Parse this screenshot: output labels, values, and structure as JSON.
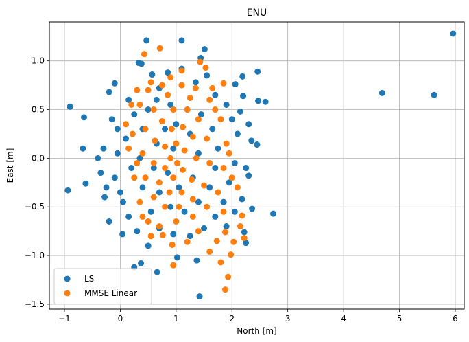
{
  "chart_data": {
    "type": "scatter",
    "title": "ENU",
    "xlabel": "North [m]",
    "ylabel": "East [m]",
    "xlim": [
      -1.27,
      6.16
    ],
    "ylim": [
      -1.55,
      1.4
    ],
    "xticks": [
      -1,
      0,
      1,
      2,
      3,
      4,
      5,
      6
    ],
    "xtick_labels": [
      "−1",
      "0",
      "1",
      "2",
      "3",
      "4",
      "5",
      "6"
    ],
    "yticks": [
      -1.5,
      -1.0,
      -0.5,
      0.0,
      0.5,
      1.0
    ],
    "ytick_labels": [
      "−1.5",
      "−1.0",
      "−0.5",
      "0.0",
      "0.5",
      "1.0"
    ],
    "grid": true,
    "legend_position": "bottom-left",
    "series": [
      {
        "name": "LS",
        "color": "#1f77b4",
        "points": [
          [
            5.96,
            1.28
          ],
          [
            4.69,
            0.67
          ],
          [
            5.62,
            0.65
          ],
          [
            1.1,
            1.21
          ],
          [
            0.47,
            1.21
          ],
          [
            1.51,
            1.12
          ],
          [
            0.33,
            0.98
          ],
          [
            0.38,
            0.97
          ],
          [
            0.57,
            0.86
          ],
          [
            1.44,
            1.03
          ],
          [
            2.46,
            0.89
          ],
          [
            2.19,
            0.84
          ],
          [
            2.06,
            0.76
          ],
          [
            -0.1,
            0.77
          ],
          [
            -0.2,
            0.68
          ],
          [
            -0.9,
            0.53
          ],
          [
            -0.65,
            0.42
          ],
          [
            2.6,
            0.58
          ],
          [
            2.47,
            0.59
          ],
          [
            2.2,
            0.64
          ],
          [
            -0.67,
            0.1
          ],
          [
            -0.94,
            -0.33
          ],
          [
            -0.62,
            -0.26
          ],
          [
            -0.4,
            0.0
          ],
          [
            -0.28,
            -0.4
          ],
          [
            -0.2,
            -0.65
          ],
          [
            0.04,
            -0.78
          ],
          [
            2.74,
            -0.57
          ],
          [
            2.36,
            -0.52
          ],
          [
            2.18,
            -0.42
          ],
          [
            2.22,
            -0.76
          ],
          [
            2.25,
            -0.87
          ],
          [
            1.42,
            -1.42
          ],
          [
            1.02,
            -1.02
          ],
          [
            0.66,
            -1.17
          ],
          [
            0.37,
            -1.08
          ],
          [
            0.25,
            -1.12
          ],
          [
            0.5,
            -0.9
          ],
          [
            1.37,
            -1.05
          ],
          [
            2.35,
            0.18
          ],
          [
            2.3,
            0.35
          ],
          [
            2.45,
            0.14
          ],
          [
            2.25,
            -0.1
          ],
          [
            2.3,
            -0.18
          ],
          [
            -0.15,
            0.4
          ],
          [
            -0.05,
            0.3
          ],
          [
            -0.3,
            0.1
          ],
          [
            -0.35,
            -0.15
          ],
          [
            -0.25,
            -0.3
          ],
          [
            -0.1,
            -0.2
          ],
          [
            0.05,
            -0.45
          ],
          [
            0.15,
            -0.6
          ],
          [
            0.3,
            -0.75
          ],
          [
            1.1,
            0.92
          ],
          [
            0.85,
            0.88
          ],
          [
            0.7,
            0.72
          ],
          [
            1.35,
            0.78
          ],
          [
            1.7,
            0.65
          ],
          [
            1.9,
            0.55
          ],
          [
            2.0,
            0.4
          ],
          [
            2.1,
            0.25
          ],
          [
            2.05,
            -0.05
          ],
          [
            1.95,
            -0.25
          ],
          [
            1.85,
            -0.45
          ],
          [
            1.7,
            -0.6
          ],
          [
            1.5,
            -0.72
          ],
          [
            1.25,
            -0.8
          ],
          [
            0.95,
            -0.78
          ],
          [
            0.7,
            -0.72
          ],
          [
            0.55,
            -0.55
          ],
          [
            0.4,
            -0.3
          ],
          [
            0.35,
            0.0
          ],
          [
            0.4,
            0.3
          ],
          [
            0.5,
            0.5
          ],
          [
            0.65,
            0.6
          ],
          [
            0.9,
            0.55
          ],
          [
            1.2,
            0.5
          ],
          [
            1.45,
            0.45
          ],
          [
            1.65,
            0.3
          ],
          [
            1.75,
            0.1
          ],
          [
            1.7,
            -0.1
          ],
          [
            1.6,
            -0.3
          ],
          [
            1.4,
            -0.45
          ],
          [
            1.15,
            -0.55
          ],
          [
            0.9,
            -0.5
          ],
          [
            0.7,
            -0.35
          ],
          [
            0.6,
            -0.1
          ],
          [
            0.65,
            0.15
          ],
          [
            0.8,
            0.3
          ],
          [
            1.0,
            0.35
          ],
          [
            1.25,
            0.25
          ],
          [
            1.4,
            0.05
          ],
          [
            1.3,
            -0.2
          ],
          [
            1.05,
            -0.3
          ],
          [
            0.85,
            -0.15
          ],
          [
            0.95,
            0.1
          ],
          [
            0.1,
            0.2
          ],
          [
            0.2,
            -0.1
          ],
          [
            0.25,
            0.45
          ],
          [
            0.15,
            0.6
          ],
          [
            2.15,
            0.48
          ],
          [
            1.55,
            0.85
          ],
          [
            0.0,
            -0.35
          ],
          [
            -0.05,
            0.05
          ],
          [
            1.9,
            -0.7
          ],
          [
            2.05,
            -0.55
          ]
        ]
      },
      {
        "name": "MMSE Linear",
        "color": "#ff7f0e",
        "points": [
          [
            0.71,
            1.13
          ],
          [
            0.43,
            1.07
          ],
          [
            1.43,
            0.99
          ],
          [
            1.53,
            0.93
          ],
          [
            1.85,
            0.77
          ],
          [
            1.88,
            -1.35
          ],
          [
            1.93,
            -1.22
          ],
          [
            1.8,
            -1.07
          ],
          [
            1.98,
            -0.99
          ],
          [
            1.6,
            -0.96
          ],
          [
            0.95,
            -1.1
          ],
          [
            0.93,
            -0.89
          ],
          [
            1.2,
            -0.86
          ],
          [
            2.03,
            -0.86
          ],
          [
            2.22,
            -0.82
          ],
          [
            2.15,
            -0.7
          ],
          [
            2.18,
            -0.59
          ],
          [
            1.88,
            -0.76
          ],
          [
            1.73,
            -0.85
          ],
          [
            0.76,
            -0.79
          ],
          [
            1.1,
            0.9
          ],
          [
            0.9,
            0.83
          ],
          [
            0.55,
            0.78
          ],
          [
            0.3,
            0.7
          ],
          [
            0.2,
            0.55
          ],
          [
            0.1,
            0.35
          ],
          [
            0.15,
            0.1
          ],
          [
            0.25,
            -0.2
          ],
          [
            0.35,
            -0.45
          ],
          [
            0.5,
            -0.65
          ],
          [
            0.7,
            -0.7
          ],
          [
            1.0,
            -0.65
          ],
          [
            1.3,
            -0.6
          ],
          [
            1.55,
            -0.5
          ],
          [
            1.75,
            -0.35
          ],
          [
            1.85,
            -0.1
          ],
          [
            1.9,
            0.15
          ],
          [
            1.8,
            0.4
          ],
          [
            1.6,
            0.6
          ],
          [
            1.35,
            0.72
          ],
          [
            1.1,
            0.75
          ],
          [
            0.85,
            0.65
          ],
          [
            0.6,
            0.5
          ],
          [
            0.45,
            0.3
          ],
          [
            0.4,
            0.05
          ],
          [
            0.45,
            -0.2
          ],
          [
            0.6,
            -0.4
          ],
          [
            0.8,
            -0.5
          ],
          [
            1.05,
            -0.5
          ],
          [
            1.3,
            -0.42
          ],
          [
            1.5,
            -0.28
          ],
          [
            1.6,
            -0.05
          ],
          [
            1.55,
            0.2
          ],
          [
            1.4,
            0.4
          ],
          [
            1.2,
            0.5
          ],
          [
            0.95,
            0.5
          ],
          [
            0.75,
            0.38
          ],
          [
            0.62,
            0.18
          ],
          [
            0.6,
            -0.05
          ],
          [
            0.7,
            -0.25
          ],
          [
            0.88,
            -0.35
          ],
          [
            1.1,
            -0.35
          ],
          [
            1.28,
            -0.22
          ],
          [
            1.36,
            0.0
          ],
          [
            1.3,
            0.22
          ],
          [
            1.12,
            0.32
          ],
          [
            0.92,
            0.3
          ],
          [
            0.8,
            0.12
          ],
          [
            0.8,
            -0.1
          ],
          [
            0.95,
            -0.2
          ],
          [
            1.12,
            -0.12
          ],
          [
            1.15,
            0.08
          ],
          [
            1.0,
            0.15
          ],
          [
            0.9,
            0.0
          ],
          [
            1.02,
            -0.05
          ],
          [
            0.35,
            0.55
          ],
          [
            0.5,
            0.7
          ],
          [
            1.7,
            0.5
          ],
          [
            1.95,
            0.05
          ],
          [
            2.0,
            -0.2
          ],
          [
            0.3,
            -0.05
          ],
          [
            0.22,
            0.25
          ],
          [
            0.55,
            -0.8
          ],
          [
            1.4,
            -0.75
          ],
          [
            1.65,
            0.72
          ],
          [
            0.75,
            0.75
          ],
          [
            1.25,
            0.62
          ],
          [
            0.4,
            -0.6
          ],
          [
            1.85,
            -0.55
          ],
          [
            2.1,
            -0.3
          ]
        ]
      }
    ]
  }
}
